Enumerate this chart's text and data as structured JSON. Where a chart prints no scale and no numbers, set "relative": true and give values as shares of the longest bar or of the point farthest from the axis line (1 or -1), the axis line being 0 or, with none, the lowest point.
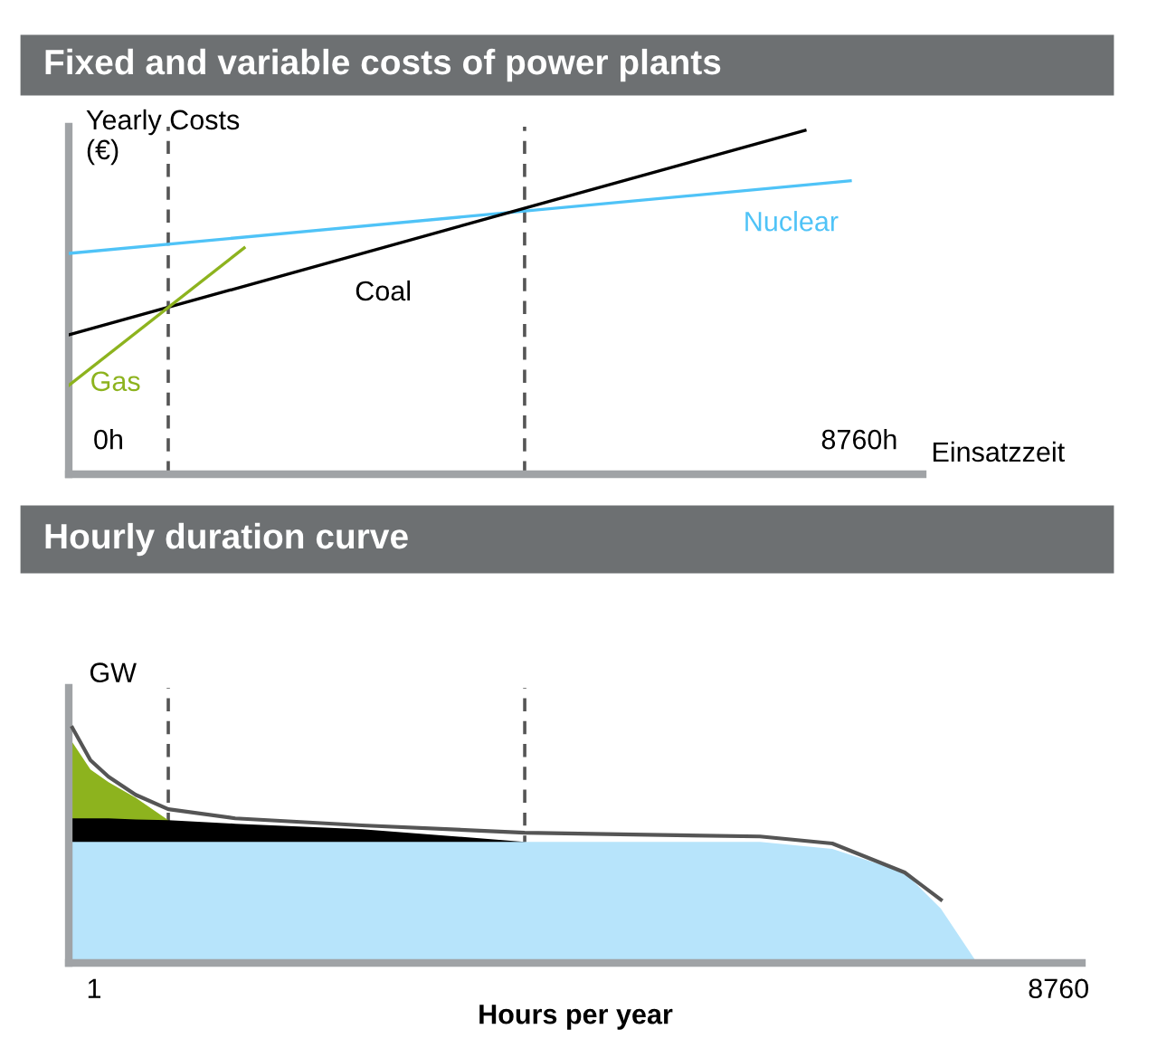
{
  "chart_data": [
    {
      "type": "line",
      "title": "Fixed and variable costs of power plants",
      "ylabel": "Yearly Costs\n(€)",
      "xlabel": "Einsatzzeit",
      "relative": true,
      "xlim": [
        -464,
        9500
      ],
      "xticks": [
        {
          "value": 0,
          "label": "0h"
        },
        {
          "value": 8760,
          "label": "8760h"
        }
      ],
      "grid": false,
      "legend": false,
      "tick_labels": "x",
      "series": [
        {
          "name": "Nuclear",
          "color": "#4fc3f7",
          "x": [
            -464,
            8655
          ],
          "values": [
            0.642,
            0.853
          ]
        },
        {
          "name": "Coal",
          "color": "#000000",
          "x": [
            -464,
            8127
          ],
          "values": [
            0.405,
            1.0
          ]
        },
        {
          "name": "Gas",
          "color": "#8db31e",
          "x": [
            -464,
            1583
          ],
          "values": [
            0.258,
            0.658
          ]
        }
      ],
      "ref_lines": [
        {
          "axis": "x",
          "value": 697,
          "color": "#555555",
          "line_style": "dashed"
        },
        {
          "axis": "x",
          "value": 4855,
          "color": "#555555",
          "line_style": "dashed"
        }
      ]
    },
    {
      "type": "area",
      "title": "Hourly duration curve",
      "ylabel": "GW",
      "xlabel": "Hours per year",
      "relative": true,
      "xlim": [
        -229,
        8972
      ],
      "xticks": [
        1,
        8760
      ],
      "grid": false,
      "legend": false,
      "tick_labels": "x",
      "x": [
        -196,
        -32,
        132,
        379,
        675,
        1283,
        2433,
        3912,
        4898,
        6048,
        6705,
        7362,
        7691,
        8020
      ],
      "series": [
        {
          "color": "#b7e4fb",
          "values": [
            0.515,
            0.515,
            0.515,
            0.515,
            0.515,
            0.515,
            0.515,
            0.515,
            0.515,
            0.515,
            0.485,
            0.385,
            0.231,
            0
          ]
        },
        {
          "color": "#000000",
          "values": [
            0.615,
            0.615,
            0.615,
            0.61,
            0.607,
            0.592,
            0.569,
            0.515,
            null,
            null,
            null,
            null,
            null,
            null
          ]
        },
        {
          "color": "#8db31e",
          "values": [
            0.938,
            0.823,
            0.769,
            0.702,
            0.607,
            null,
            null,
            null,
            null,
            null,
            null,
            null,
            null,
            null
          ]
        },
        {
          "type": "line",
          "color": "#555555",
          "values": [
            1.0,
            0.862,
            0.792,
            0.715,
            0.654,
            0.615,
            0.585,
            0.554,
            0.546,
            0.538,
            0.508,
            0.385,
            0.269,
            null
          ]
        }
      ],
      "ref_lines": [
        {
          "axis": "x",
          "value": 675,
          "color": "#555555",
          "line_style": "dashed"
        },
        {
          "axis": "x",
          "value": 3912,
          "color": "#555555",
          "line_style": "dashed"
        }
      ]
    }
  ]
}
